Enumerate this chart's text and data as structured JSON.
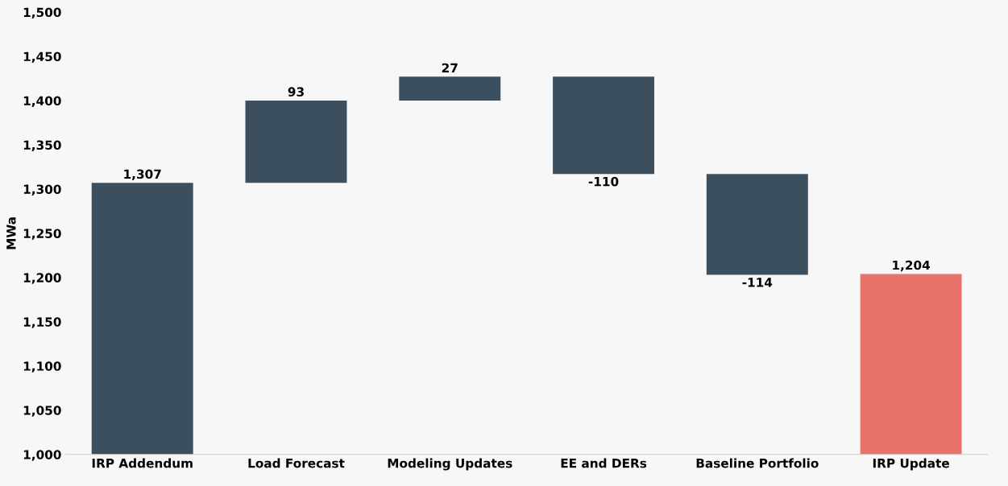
{
  "chart_data": {
    "type": "bar",
    "ylabel": "MWa",
    "categories": [
      "IRP Addendum",
      "Load Forecast",
      "Modeling Updates",
      "EE and DERs",
      "Baseline Portfolio",
      "IRP Update"
    ],
    "values": [
      1307,
      93,
      27,
      -110,
      -114,
      1204
    ],
    "base": [
      null,
      1307,
      1400,
      1427,
      1317,
      null
    ],
    "colors": [
      "#3b4f5e",
      "#3b4f5e",
      "#3b4f5e",
      "#3b4f5e",
      "#3b4f5e",
      "#e8736a"
    ],
    "value_labels": [
      "1,307",
      "93",
      "27",
      "-110",
      "-114",
      "1,204"
    ],
    "ylim": [
      1000,
      1500
    ],
    "yticks": [
      {
        "value": 1000,
        "label": "1,000"
      },
      {
        "value": 1050,
        "label": "1,050"
      },
      {
        "value": 1100,
        "label": "1,100"
      },
      {
        "value": 1150,
        "label": "1,150"
      },
      {
        "value": 1200,
        "label": "1,200"
      },
      {
        "value": 1250,
        "label": "1,250"
      },
      {
        "value": 1300,
        "label": "1,300"
      },
      {
        "value": 1350,
        "label": "1,350"
      },
      {
        "value": 1400,
        "label": "1,400"
      },
      {
        "value": 1450,
        "label": "1,450"
      },
      {
        "value": 1500,
        "label": "1,500"
      }
    ],
    "grid": false
  }
}
